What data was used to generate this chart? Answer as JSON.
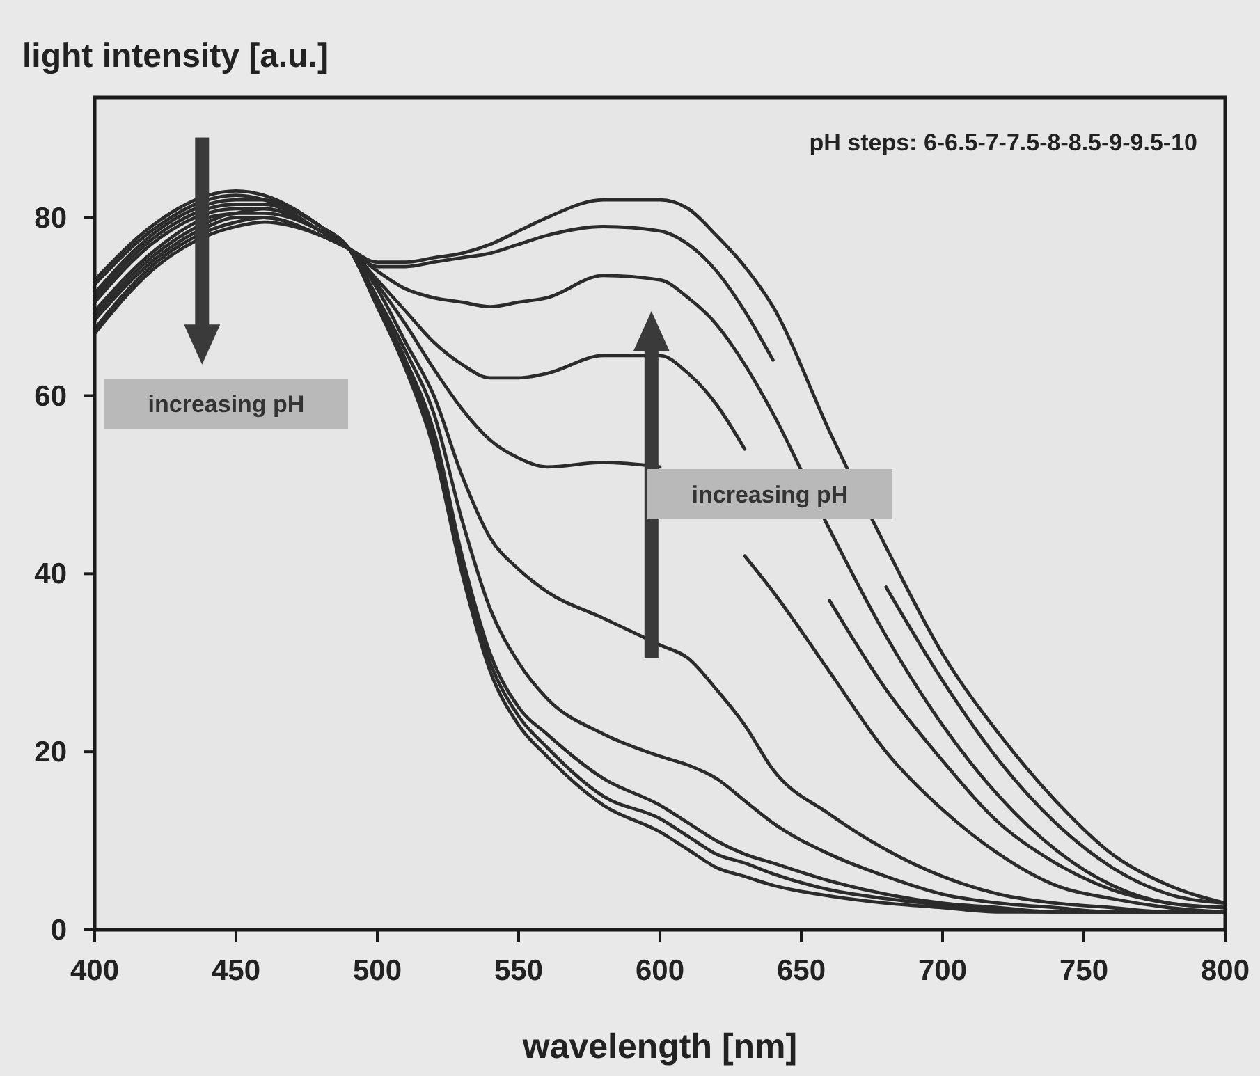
{
  "chart_data": {
    "type": "line",
    "xlabel": "wavelength [nm]",
    "ylabel": "light intensity [a.u.]",
    "annotations": [
      "pH steps: 6-6.5-7-7.5-8-8.5-9-9.5-10",
      "increasing pH",
      "increasing pH"
    ],
    "x": [
      400,
      420,
      440,
      450,
      460,
      480,
      490,
      500,
      510,
      520,
      530,
      540,
      550,
      560,
      580,
      600,
      610,
      620,
      630,
      640,
      660,
      680,
      700,
      720,
      740,
      760,
      780,
      800
    ],
    "series": [
      {
        "color": "#2b2b2b",
        "values": [
          73,
          79,
          82.5,
          83,
          82.5,
          79,
          76.5,
          70,
          63,
          54,
          40,
          29,
          23,
          19.5,
          14,
          11,
          9,
          7,
          6,
          5,
          3.8,
          3,
          2.5,
          2,
          2,
          2,
          2,
          2
        ]
      },
      {
        "color": "#2b2b2b",
        "values": [
          72.5,
          78.5,
          82,
          82.5,
          82,
          79,
          76.5,
          70,
          63.5,
          55,
          41,
          30,
          24,
          20.5,
          15,
          12.5,
          10.5,
          8.5,
          7.5,
          6.3,
          4.5,
          3.5,
          2.8,
          2.2,
          2,
          2,
          2,
          2
        ]
      },
      {
        "color": "#2b2b2b",
        "values": [
          71.5,
          78,
          81.5,
          82,
          82,
          79,
          76.5,
          70.5,
          64,
          56,
          42,
          31,
          25,
          22,
          17,
          14,
          12,
          10,
          8.5,
          7.5,
          5.5,
          4,
          3,
          2.5,
          2,
          2,
          2,
          2
        ]
      },
      {
        "color": "#2b2b2b",
        "values": [
          71,
          77.5,
          81,
          81.5,
          81.5,
          78.5,
          76.5,
          71,
          65,
          58,
          46,
          36,
          30,
          26,
          22,
          19.5,
          18.5,
          17,
          14.5,
          12,
          8.5,
          6,
          4,
          3,
          2.5,
          2,
          2,
          2
        ]
      },
      {
        "color": "#2b2b2b",
        "values": [
          70.5,
          77,
          80.5,
          81,
          81,
          78.5,
          76.5,
          72,
          66,
          60,
          51,
          44,
          40.5,
          38,
          35,
          32,
          30.5,
          27,
          23,
          18,
          13,
          9,
          6,
          4,
          3,
          2.5,
          2,
          2
        ]
      },
      {
        "color": "#2b2b2b",
        "values": [
          69.5,
          76,
          80,
          80.5,
          81,
          78.5,
          76.5,
          72.5,
          68,
          63,
          58.5,
          55,
          53,
          52,
          52.5,
          52,
          null,
          null,
          42,
          38,
          29,
          20,
          13.5,
          8.5,
          5,
          3.5,
          2.5,
          2
        ]
      },
      {
        "color": "#2b2b2b",
        "values": [
          69,
          75.5,
          79.5,
          80.5,
          80.5,
          78.5,
          76.5,
          73,
          69.5,
          66,
          63.5,
          62,
          62,
          62.5,
          64.5,
          64.5,
          62.5,
          59,
          54,
          null,
          37,
          27,
          19,
          12,
          7.5,
          4.5,
          3,
          2.5
        ]
      },
      {
        "color": "#2b2b2b",
        "values": [
          68.5,
          75,
          79,
          80,
          80,
          78,
          76.5,
          74,
          72,
          71,
          70.5,
          70,
          70.5,
          71,
          73.5,
          73,
          71,
          68,
          63.5,
          58,
          45,
          33,
          23,
          15,
          9,
          5,
          3,
          2.5
        ]
      },
      {
        "color": "#2b2b2b",
        "values": [
          67.5,
          74.5,
          78.5,
          79.5,
          80,
          78,
          76.5,
          74.5,
          74.5,
          75,
          75.5,
          76,
          77,
          78,
          79,
          78.5,
          77,
          74,
          69.5,
          64,
          null,
          38.5,
          28,
          19,
          12,
          7,
          4,
          3
        ]
      },
      {
        "color": "#2b2b2b",
        "values": [
          67,
          74,
          78,
          79,
          79.5,
          78,
          76.5,
          75,
          75,
          75.5,
          76,
          77,
          78.5,
          80,
          82,
          82,
          81,
          78,
          74.5,
          70,
          56,
          43,
          31,
          22,
          14.5,
          8.5,
          5,
          3
        ]
      }
    ],
    "xlim": [
      400,
      800
    ],
    "xticks": [
      400,
      450,
      500,
      550,
      600,
      650,
      700,
      750,
      800
    ],
    "ylim": [
      0,
      93.5
    ],
    "yticks": [
      0,
      20,
      40,
      60,
      80
    ],
    "grid": false
  }
}
